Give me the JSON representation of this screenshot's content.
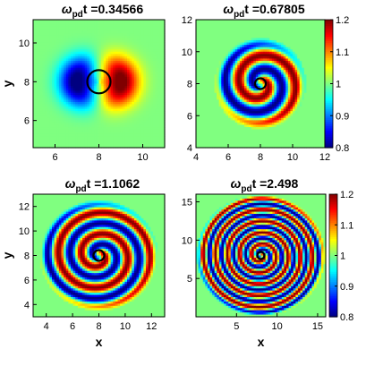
{
  "chart_data": [
    {
      "type": "heatmap",
      "title": "t =0.34566",
      "title_omega": "ω",
      "title_sub": "pd",
      "xlabel": "",
      "ylabel": "y",
      "xlim": [
        5,
        11
      ],
      "ylim": [
        4.6,
        11.2
      ],
      "xticks": [
        "6",
        "8",
        "10"
      ],
      "xtick_values": [
        6,
        8,
        10
      ],
      "yticks": [
        "6",
        "8",
        "10"
      ],
      "ytick_values": [
        6,
        8,
        10
      ],
      "colorbar": false,
      "center": [
        8,
        8
      ],
      "pattern": "dipole",
      "arms": 0,
      "amplitude": 0.22
    },
    {
      "type": "heatmap",
      "title": "t =0.67805",
      "title_omega": "ω",
      "title_sub": "pd",
      "xlabel": "",
      "ylabel": "",
      "xlim": [
        4,
        12
      ],
      "ylim": [
        4,
        12
      ],
      "xticks": [
        "4",
        "6",
        "8",
        "10",
        "12"
      ],
      "xtick_values": [
        4,
        6,
        8,
        10,
        12
      ],
      "yticks": [
        "4",
        "6",
        "8",
        "10",
        "12"
      ],
      "ytick_values": [
        4,
        6,
        8,
        10,
        12
      ],
      "colorbar": true,
      "colorbar_ticks": [
        "0.8",
        "0.9",
        "1",
        "1.1",
        "1.2"
      ],
      "colorbar_values": [
        0.8,
        0.9,
        1.0,
        1.1,
        1.2
      ],
      "center": [
        8,
        8
      ],
      "pattern": "spiral",
      "arms": 1.1,
      "amplitude": 0.2
    },
    {
      "type": "heatmap",
      "title": "t =1.1062",
      "title_omega": "ω",
      "title_sub": "pd",
      "xlabel": "x",
      "ylabel": "y",
      "xlim": [
        3,
        13
      ],
      "ylim": [
        3,
        13
      ],
      "xticks": [
        "4",
        "6",
        "8",
        "10",
        "12"
      ],
      "xtick_values": [
        4,
        6,
        8,
        10,
        12
      ],
      "yticks": [
        "4",
        "6",
        "8",
        "10",
        "12"
      ],
      "ytick_values": [
        4,
        6,
        8,
        10,
        12
      ],
      "colorbar": false,
      "center": [
        8,
        8
      ],
      "pattern": "spiral",
      "arms": 2.2,
      "amplitude": 0.2
    },
    {
      "type": "heatmap",
      "title": "t =2.498",
      "title_omega": "ω",
      "title_sub": "pd",
      "xlabel": "x",
      "ylabel": "",
      "xlim": [
        0,
        16
      ],
      "ylim": [
        0,
        16
      ],
      "xticks": [
        "5",
        "10",
        "15"
      ],
      "xtick_values": [
        5,
        10,
        15
      ],
      "yticks": [
        "5",
        "10",
        "15"
      ],
      "ytick_values": [
        5,
        10,
        15
      ],
      "colorbar": true,
      "colorbar_ticks": [
        "0.8",
        "0.9",
        "1",
        "1.1",
        "1.2"
      ],
      "colorbar_values": [
        0.8,
        0.9,
        1.0,
        1.1,
        1.2
      ],
      "center": [
        8,
        8
      ],
      "pattern": "spiral",
      "arms": 4.5,
      "amplitude": 0.2
    }
  ],
  "colors": {
    "background_field": "#80ff80",
    "colormap": "jet",
    "vmin": 0.8,
    "vmax": 1.2
  }
}
